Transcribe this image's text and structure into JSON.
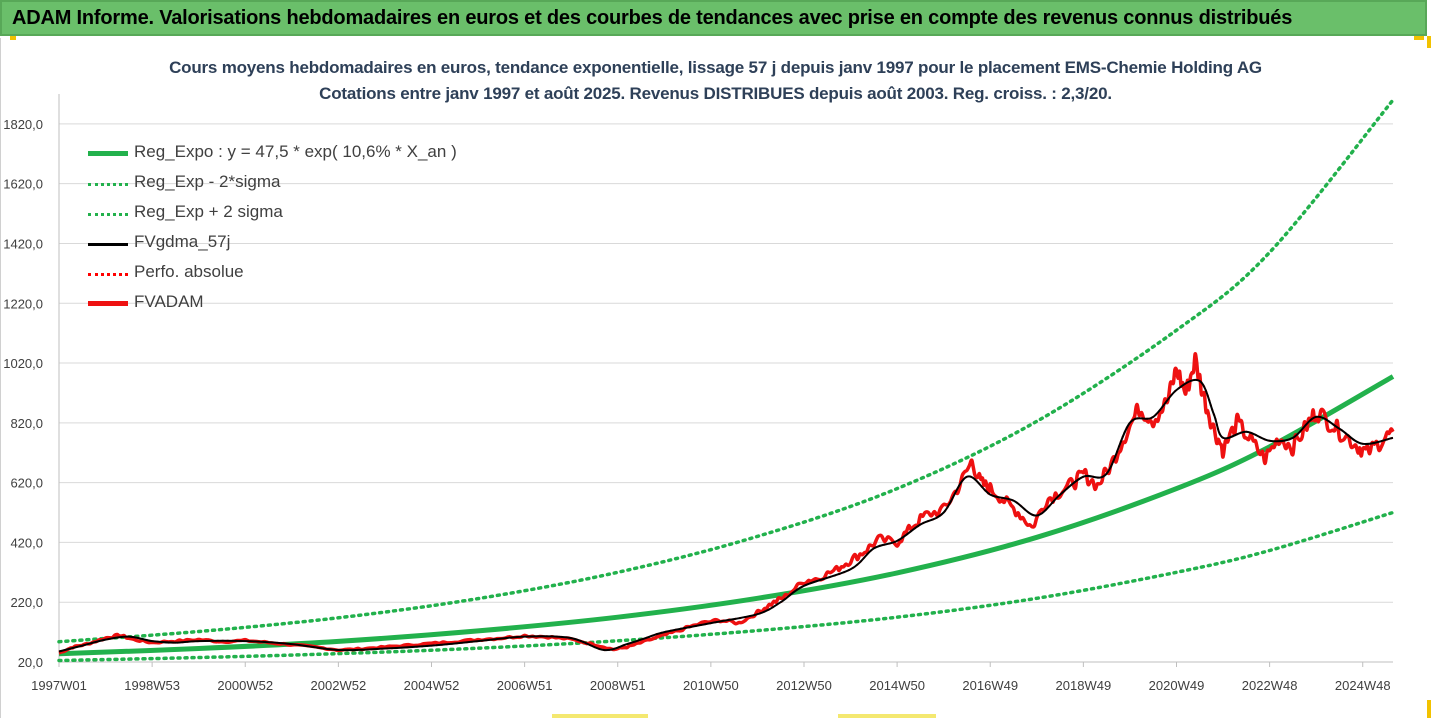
{
  "header": {
    "title": "ADAM Informe. Valorisations hebdomadaires en euros et des courbes de tendances avec prise en compte des revenus connus distribués"
  },
  "colors": {
    "reg_expo": "#22b14c",
    "sigma": "#22b14c",
    "fvgdma": "#000000",
    "perfo": "#ff0000",
    "fvadam": "#ee1111",
    "header_bg": "#6abf6a",
    "title_text": "#2e4058"
  },
  "chart_data": {
    "type": "line",
    "title": "Cours moyens hebdomadaires en euros, tendance exponentielle, lissage 57 j depuis janv 1997 pour le placement EMS-Chemie Holding AG",
    "subtitle": "Cotations entre janv 1997 et août 2025. Revenus DISTRIBUES depuis août 2003. Reg. croiss. : 2,3/20.",
    "x_range": [
      1997.0,
      2025.65
    ],
    "ylim": [
      20,
      1920
    ],
    "y_ticks": [
      "20,0",
      "220,0",
      "420,0",
      "620,0",
      "820,0",
      "1020,0",
      "1220,0",
      "1420,0",
      "1620,0",
      "1820,0"
    ],
    "x_ticks": [
      {
        "label": "1997W01",
        "x": 1997.0
      },
      {
        "label": "1998W53",
        "x": 1999.0
      },
      {
        "label": "2000W52",
        "x": 2001.0
      },
      {
        "label": "2002W52",
        "x": 2003.0
      },
      {
        "label": "2004W52",
        "x": 2005.0
      },
      {
        "label": "2006W51",
        "x": 2007.0
      },
      {
        "label": "2008W51",
        "x": 2009.0
      },
      {
        "label": "2010W50",
        "x": 2011.0
      },
      {
        "label": "2012W50",
        "x": 2013.0
      },
      {
        "label": "2014W50",
        "x": 2015.0
      },
      {
        "label": "2016W49",
        "x": 2017.0
      },
      {
        "label": "2018W49",
        "x": 2019.0
      },
      {
        "label": "2020W49",
        "x": 2021.0
      },
      {
        "label": "2022W48",
        "x": 2023.0
      },
      {
        "label": "2024W48",
        "x": 2025.0
      }
    ],
    "grid": "horizontal",
    "legend_position": "top-left",
    "series": [
      {
        "name": "Reg_Expo : y = 47,5 * exp( 10,6% *  X_an )",
        "style": "solid-thick",
        "color": "#22b14c",
        "x": [
          1997.0,
          2000.0,
          2003.0,
          2006.0,
          2009.0,
          2012.0,
          2015.0,
          2018.0,
          2021.0,
          2023.0,
          2025.65
        ],
        "y": [
          47.5,
          65,
          89,
          124,
          170,
          233,
          318,
          437,
          600,
          740,
          975
        ]
      },
      {
        "name": "Reg_Exp - 2*sigma",
        "style": "dotted",
        "color": "#22b14c",
        "x": [
          1997.0,
          2000.0,
          2003.0,
          2006.0,
          2009.0,
          2012.0,
          2015.0,
          2018.0,
          2021.0,
          2023.0,
          2025.65
        ],
        "y": [
          25,
          35,
          48,
          66,
          91,
          125,
          170,
          233,
          320,
          393,
          520
        ]
      },
      {
        "name": "Reg_Exp + 2 sigma",
        "style": "dotted",
        "color": "#22b14c",
        "x": [
          1997.0,
          2000.0,
          2003.0,
          2006.0,
          2009.0,
          2012.0,
          2015.0,
          2018.0,
          2021.0,
          2023.0,
          2025.65
        ],
        "y": [
          88,
          122,
          168,
          232,
          320,
          440,
          600,
          825,
          1130,
          1390,
          1900
        ]
      },
      {
        "name": "FVgdma_57j",
        "style": "solid-thin",
        "color": "#000000",
        "x": [
          1997.0,
          1997.5,
          1998.0,
          1998.5,
          1999.0,
          1999.5,
          2000.0,
          2001.0,
          2002.0,
          2003.0,
          2004.0,
          2005.0,
          2006.0,
          2007.0,
          2008.0,
          2008.7,
          2009.2,
          2009.6,
          2010.0,
          2011.0,
          2012.0,
          2012.5,
          2013.0,
          2014.0,
          2014.5,
          2015.0,
          2015.5,
          2016.0,
          2016.5,
          2017.0,
          2017.5,
          2018.0,
          2018.5,
          2019.0,
          2019.5,
          2020.0,
          2020.5,
          2021.0,
          2021.5,
          2021.8,
          2022.0,
          2022.5,
          2023.0,
          2023.5,
          2024.0,
          2024.5,
          2025.0,
          2025.65
        ],
        "y": [
          55,
          75,
          95,
          105,
          90,
          85,
          90,
          90,
          80,
          60,
          65,
          75,
          90,
          105,
          100,
          60,
          80,
          100,
          120,
          150,
          180,
          220,
          275,
          330,
          400,
          425,
          480,
          520,
          640,
          580,
          560,
          510,
          580,
          640,
          650,
          820,
          840,
          930,
          960,
          850,
          770,
          790,
          760,
          770,
          840,
          800,
          750,
          770
        ]
      },
      {
        "name": "Perfo. absolue",
        "style": "dotted",
        "color": "#ff0000",
        "x": [
          1997.0,
          1997.5,
          1998.0,
          1998.5,
          1999.0,
          1999.5,
          2000.0,
          2001.0,
          2002.0,
          2003.0,
          2004.0,
          2005.0,
          2006.0,
          2007.0,
          2008.0,
          2008.7,
          2009.2,
          2009.6,
          2010.0,
          2011.0,
          2012.0,
          2012.5,
          2013.0,
          2014.0,
          2014.5,
          2015.0,
          2015.5,
          2016.0,
          2016.5,
          2017.0,
          2017.5,
          2018.0,
          2018.5,
          2019.0,
          2019.5,
          2020.0,
          2020.5,
          2021.0,
          2021.5,
          2021.8,
          2022.0,
          2022.5,
          2023.0,
          2023.5,
          2024.0,
          2024.5,
          2025.0,
          2025.65
        ],
        "y": [
          55,
          75,
          95,
          105,
          90,
          85,
          90,
          90,
          80,
          60,
          65,
          75,
          90,
          105,
          100,
          60,
          80,
          100,
          120,
          150,
          180,
          220,
          275,
          330,
          400,
          425,
          480,
          520,
          640,
          580,
          560,
          510,
          580,
          640,
          650,
          820,
          840,
          930,
          960,
          850,
          770,
          790,
          760,
          770,
          840,
          800,
          750,
          770
        ]
      },
      {
        "name": "FVADAM",
        "style": "solid-thick",
        "color": "#ee1111",
        "x": [
          1997.0,
          1997.3,
          1997.6,
          1998.0,
          1998.3,
          1998.6,
          1999.0,
          1999.5,
          2000.0,
          2000.5,
          2001.0,
          2001.5,
          2002.0,
          2002.5,
          2003.0,
          2003.5,
          2004.0,
          2004.5,
          2005.0,
          2005.5,
          2006.0,
          2006.5,
          2007.0,
          2007.5,
          2008.0,
          2008.5,
          2008.9,
          2009.2,
          2009.5,
          2009.9,
          2010.3,
          2010.8,
          2011.2,
          2011.6,
          2012.0,
          2012.3,
          2012.6,
          2013.0,
          2013.3,
          2013.7,
          2014.0,
          2014.3,
          2014.6,
          2015.0,
          2015.3,
          2015.6,
          2016.0,
          2016.3,
          2016.6,
          2016.8,
          2017.0,
          2017.3,
          2017.6,
          2017.9,
          2018.2,
          2018.5,
          2018.8,
          2019.0,
          2019.3,
          2019.6,
          2019.9,
          2020.2,
          2020.5,
          2020.8,
          2021.0,
          2021.2,
          2021.4,
          2021.6,
          2021.8,
          2022.0,
          2022.3,
          2022.6,
          2022.9,
          2023.2,
          2023.5,
          2023.8,
          2024.0,
          2024.3,
          2024.6,
          2024.9,
          2025.1,
          2025.4,
          2025.65
        ],
        "y": [
          50,
          70,
          80,
          100,
          110,
          95,
          85,
          90,
          95,
          88,
          92,
          85,
          78,
          70,
          60,
          64,
          70,
          76,
          82,
          88,
          95,
          100,
          108,
          104,
          96,
          78,
          62,
          70,
          85,
          105,
          125,
          150,
          160,
          150,
          185,
          215,
          240,
          290,
          300,
          330,
          360,
          390,
          430,
          420,
          470,
          510,
          530,
          600,
          690,
          620,
          600,
          560,
          520,
          470,
          560,
          590,
          620,
          650,
          610,
          680,
          780,
          870,
          830,
          890,
          1000,
          920,
          1030,
          900,
          800,
          730,
          820,
          760,
          700,
          770,
          740,
          810,
          860,
          820,
          780,
          740,
          720,
          760,
          790
        ]
      }
    ]
  }
}
